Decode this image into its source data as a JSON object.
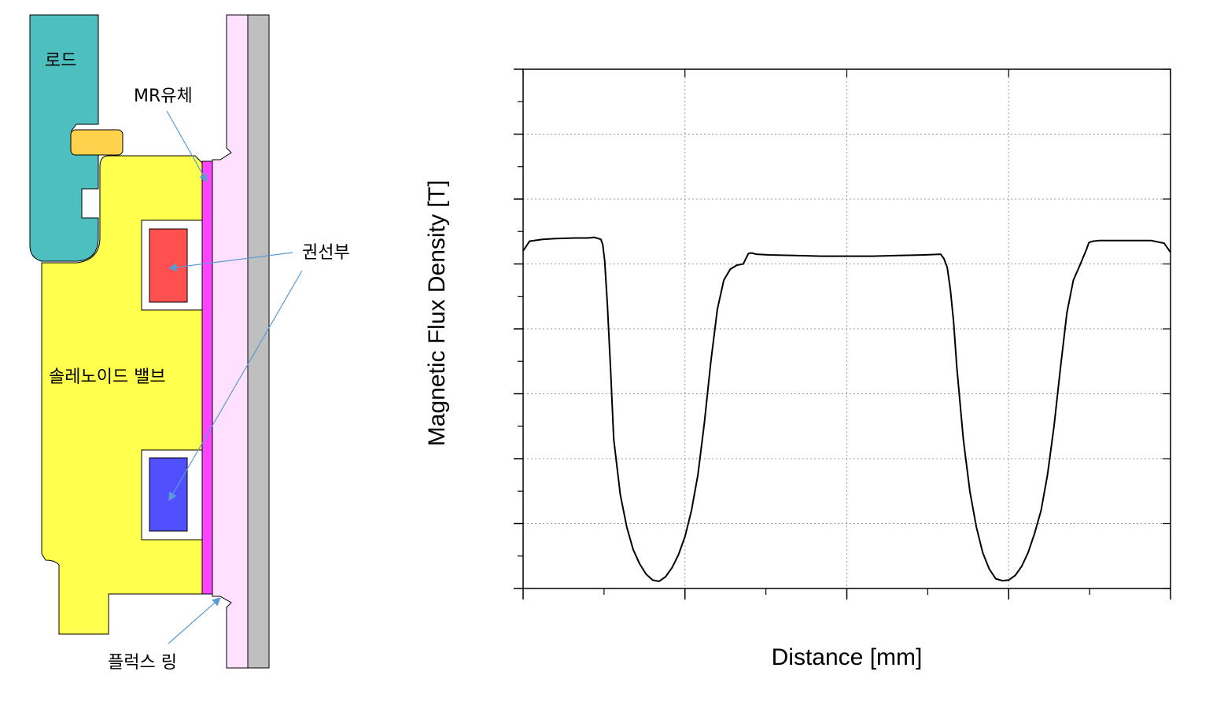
{
  "diagram": {
    "labels": {
      "rod": "로드",
      "mr_fluid": "MR유체",
      "coil": "권선부",
      "solenoid_valve": "솔레노이드 밸브",
      "flux_ring": "플럭스 링"
    },
    "colors": {
      "rod": "#4dbfbf",
      "solenoid_valve": "#ffff4d",
      "seal": "#ffd24d",
      "mr_fluid": "#ff44ff",
      "flux_ring": "#ffe0ff",
      "cylinder_wall": "#bfbfbf",
      "coil_top": "#ff5050",
      "coil_bottom": "#5050ff",
      "arrow": "#5b9bd5"
    }
  },
  "chart_data": {
    "type": "line",
    "xlabel": "Distance [mm]",
    "ylabel": "Magnetic Flux Density [T]",
    "xlim": [
      0,
      100
    ],
    "ylim": [
      0,
      8
    ],
    "grid": true,
    "x_major_ticks": [
      0,
      25,
      50,
      75,
      100
    ],
    "x_minor_ticks": [
      12.5,
      37.5,
      62.5,
      87.5
    ],
    "y_major_ticks": [
      0,
      1,
      2,
      3,
      4,
      5,
      6,
      7,
      8
    ],
    "series": [
      {
        "x": [
          0,
          1,
          3,
          5,
          8,
          10,
          11,
          12,
          12.3,
          12.6,
          13,
          13.5,
          14,
          15,
          16,
          17,
          18,
          19,
          20,
          21,
          22,
          23,
          24,
          25,
          26,
          27,
          28,
          29,
          30,
          31,
          32,
          33,
          34,
          34.8,
          35.3,
          36,
          38,
          42,
          46,
          50,
          54,
          58,
          62,
          64.5,
          65,
          65.5,
          66,
          66.5,
          67,
          68,
          69,
          70,
          71,
          72,
          73,
          74,
          75,
          76,
          77,
          78,
          79,
          80,
          81,
          82,
          83,
          84,
          85,
          86,
          87,
          87.4,
          88,
          89,
          91,
          94,
          97,
          99,
          100
        ],
        "y": [
          5.2,
          5.35,
          5.38,
          5.39,
          5.4,
          5.4,
          5.41,
          5.38,
          5.3,
          5.05,
          4.4,
          3.4,
          2.3,
          1.45,
          0.95,
          0.6,
          0.38,
          0.22,
          0.13,
          0.11,
          0.18,
          0.32,
          0.52,
          0.8,
          1.2,
          1.75,
          2.55,
          3.5,
          4.3,
          4.75,
          4.92,
          4.98,
          5.0,
          5.16,
          5.17,
          5.15,
          5.14,
          5.13,
          5.12,
          5.12,
          5.12,
          5.13,
          5.14,
          5.15,
          5.08,
          4.95,
          4.6,
          4.1,
          3.4,
          2.3,
          1.5,
          0.95,
          0.55,
          0.3,
          0.15,
          0.12,
          0.13,
          0.2,
          0.34,
          0.55,
          0.85,
          1.2,
          1.75,
          2.5,
          3.4,
          4.25,
          4.75,
          4.98,
          5.22,
          5.33,
          5.35,
          5.36,
          5.36,
          5.36,
          5.36,
          5.32,
          5.18
        ]
      }
    ]
  }
}
